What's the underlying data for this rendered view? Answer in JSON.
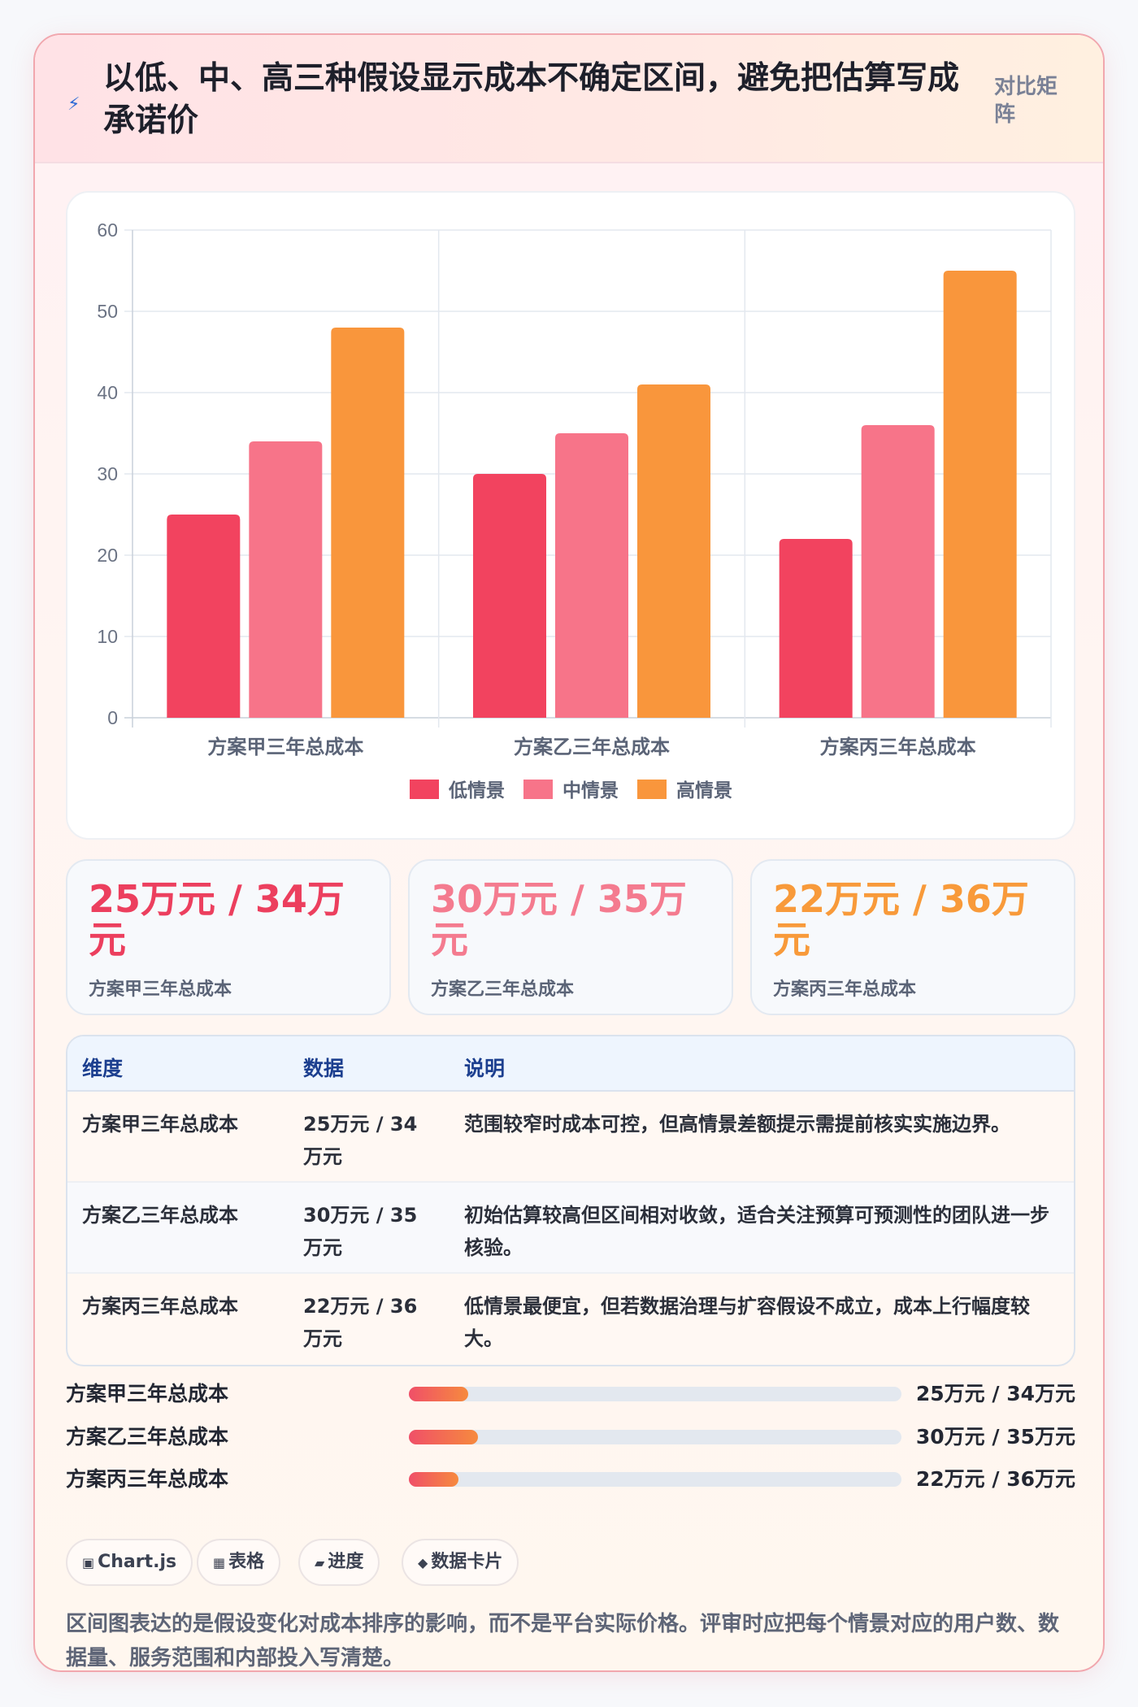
{
  "header": {
    "icon": "lightning-icon",
    "title": "以低、中、高三种假设显示成本不确定区间，避免把估算写成承诺价",
    "tag": "对比矩阵"
  },
  "chart_data": {
    "type": "bar",
    "categories": [
      "方案甲三年总成本",
      "方案乙三年总成本",
      "方案丙三年总成本"
    ],
    "series": [
      {
        "name": "低情景",
        "values": [
          25,
          30,
          22
        ],
        "color": "#f2435f"
      },
      {
        "name": "中情景",
        "values": [
          34,
          35,
          36
        ],
        "color": "#f77489"
      },
      {
        "name": "高情景",
        "values": [
          48,
          41,
          55
        ],
        "color": "#f9963c"
      }
    ],
    "ylim": [
      0,
      60
    ],
    "yticks": [
      "0",
      "10",
      "20",
      "30",
      "40",
      "50",
      "60"
    ],
    "grid": true,
    "legend": "bottom"
  },
  "stats": [
    {
      "value": "25万元 / 34万元",
      "label": "方案甲三年总成本",
      "color": "#ec3f5e"
    },
    {
      "value": "30万元 / 35万元",
      "label": "方案乙三年总成本",
      "color": "#f47b8f"
    },
    {
      "value": "22万元 / 36万元",
      "label": "方案丙三年总成本",
      "color": "#f89a3a"
    }
  ],
  "table": {
    "headers": [
      "维度",
      "数据",
      "说明"
    ],
    "rows": [
      [
        "方案甲三年总成本",
        "25万元 / 34万元",
        "范围较窄时成本可控，但高情景差额提示需提前核实实施边界。"
      ],
      [
        "方案乙三年总成本",
        "30万元 / 35万元",
        "初始估算较高但区间相对收敛，适合关注预算可预测性的团队进一步核验。"
      ],
      [
        "方案丙三年总成本",
        "22万元 / 36万元",
        "低情景最便宜，但若数据治理与扩容假设不成立，成本上行幅度较大。"
      ]
    ]
  },
  "progress": [
    {
      "label": "方案甲三年总成本",
      "value": "25万元 / 34万元",
      "fraction": 0.12
    },
    {
      "label": "方案乙三年总成本",
      "value": "30万元 / 35万元",
      "fraction": 0.14
    },
    {
      "label": "方案丙三年总成本",
      "value": "22万元 / 36万元",
      "fraction": 0.1
    }
  ],
  "chips": [
    {
      "icon": "chart-icon",
      "glyph": "▣",
      "label": "Chart.js"
    },
    {
      "icon": "table-icon",
      "glyph": "▦",
      "label": "表格"
    },
    {
      "icon": "progress-icon",
      "glyph": "▰",
      "label": "进度"
    },
    {
      "icon": "card-icon",
      "glyph": "◆",
      "label": "数据卡片"
    }
  ],
  "note": "区间图表达的是假设变化对成本排序的影响，而不是平台实际价格。评审时应把每个情景对应的用户数、数据量、服务范围和内部投入写清楚。"
}
